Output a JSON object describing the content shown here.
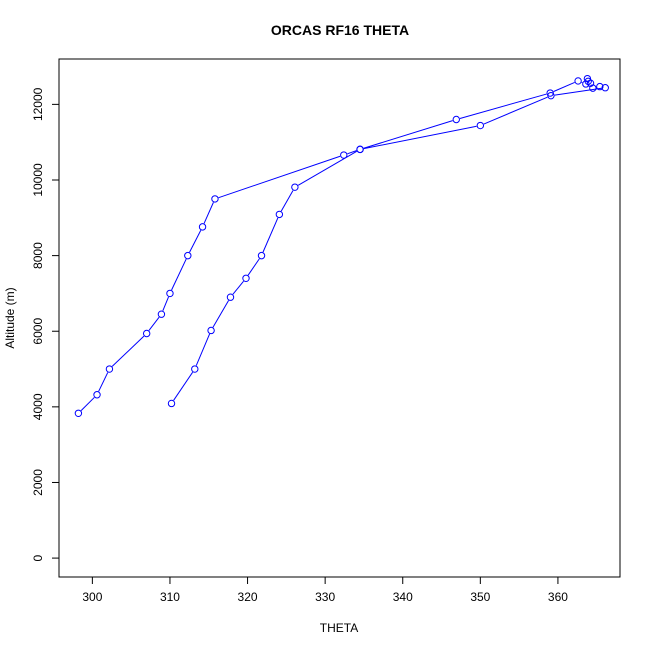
{
  "chart_data": {
    "type": "line",
    "title": "ORCAS RF16 THETA",
    "xlabel": "THETA",
    "ylabel": "Altitude (m)",
    "xlim": [
      295.7,
      368.0
    ],
    "ylim": [
      -500,
      13200
    ],
    "x_ticks": [
      300,
      310,
      320,
      330,
      340,
      350,
      360
    ],
    "y_ticks": [
      0,
      2000,
      4000,
      6000,
      8000,
      10000,
      12000
    ],
    "grid": false,
    "line_color": "#0000ff",
    "marker": "open-circle",
    "series": [
      {
        "x": [
          298.2,
          300.6,
          302.2,
          307.0,
          308.9,
          310.0,
          312.3,
          314.2,
          315.8,
          332.4,
          334.5,
          346.9,
          359.0,
          362.6,
          363.6,
          363.8,
          363.9,
          364.2,
          364.5,
          365.4,
          366.1,
          359.1,
          350.0,
          334.5,
          326.1,
          324.1,
          321.8,
          319.8,
          317.8,
          315.3,
          313.2,
          310.2
        ],
        "y": [
          3830,
          4320,
          5000,
          5940,
          6450,
          7000,
          8000,
          8760,
          9500,
          10660,
          10810,
          11600,
          12300,
          12620,
          12540,
          12680,
          12610,
          12560,
          12430,
          12470,
          12440,
          12230,
          11440,
          10810,
          9810,
          9090,
          8000,
          7400,
          6900,
          6020,
          5000,
          4090
        ]
      }
    ]
  }
}
